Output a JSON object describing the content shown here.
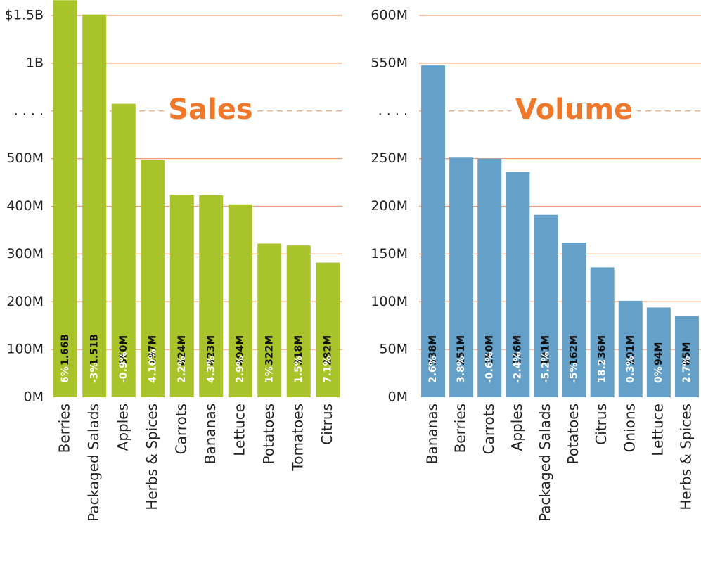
{
  "chart_data": [
    {
      "type": "bar",
      "title": "Sales",
      "categories": [
        "Berries",
        "Packaged Salads",
        "Apples",
        "Herbs & Spices",
        "Carrots",
        "Bananas",
        "Lettuce",
        "Potatoes",
        "Tomatoes",
        "Citrus"
      ],
      "values": [
        1660000000,
        1510000000,
        660000000,
        497000000,
        424000000,
        423000000,
        404000000,
        322000000,
        318000000,
        282000000
      ],
      "value_labels": [
        "1.66B",
        "1.51B",
        "660M",
        "497M",
        "424M",
        "423M",
        "404M",
        "322M",
        "318M",
        "282M"
      ],
      "change_labels": [
        "6%",
        "-3%",
        "-0.9%",
        "4.10%",
        "2.2%",
        "4.3%",
        "2.9%",
        "1%",
        "1.5%",
        "7.1%"
      ],
      "color": "#a9c42b",
      "ylim": [
        0,
        1700000000
      ],
      "yticks": [
        {
          "value": 0,
          "label": "0M"
        },
        {
          "value": 100000000,
          "label": "100M"
        },
        {
          "value": 200000000,
          "label": "200M"
        },
        {
          "value": 300000000,
          "label": "300M"
        },
        {
          "value": 400000000,
          "label": "400M"
        },
        {
          "value": 500000000,
          "label": "500M"
        },
        {
          "value": 600000000,
          "label": ". . . ."
        },
        {
          "value": 1000000000,
          "label": "1B"
        },
        {
          "value": 1500000000,
          "label": "$1.5B"
        }
      ]
    },
    {
      "type": "bar",
      "title": "Volume",
      "categories": [
        "Bananas",
        "Berries",
        "Carrots",
        "Apples",
        "Packaged Salads",
        "Potatoes",
        "Citrus",
        "Onions",
        "Lettuce",
        "Herbs & Spices"
      ],
      "values": [
        538000000,
        251000000,
        250000000,
        236000000,
        191000000,
        162000000,
        136000000,
        101000000,
        94000000,
        85000000
      ],
      "value_labels": [
        "538M",
        "251M",
        "250M",
        "236M",
        "191M",
        "162M",
        "136M",
        "101M",
        "94M",
        "85M"
      ],
      "change_labels": [
        "2.6%",
        "3.8%",
        "-0.6%",
        "-2.4%",
        "-5.2%",
        "-5%",
        "18.2",
        "0.3%",
        "0%",
        "2.7%"
      ],
      "color": "#65a0c9",
      "ylim": [
        0,
        600000000
      ],
      "yticks": [
        {
          "value": 0,
          "label": "0M"
        },
        {
          "value": 50000000,
          "label": "50M"
        },
        {
          "value": 100000000,
          "label": "100M"
        },
        {
          "value": 150000000,
          "label": "150M"
        },
        {
          "value": 200000000,
          "label": "200M"
        },
        {
          "value": 250000000,
          "label": "250M"
        },
        {
          "value": 300000000,
          "label": ". . . ."
        },
        {
          "value": 550000000,
          "label": "550M"
        },
        {
          "value": 600000000,
          "label": "600M"
        }
      ]
    }
  ]
}
